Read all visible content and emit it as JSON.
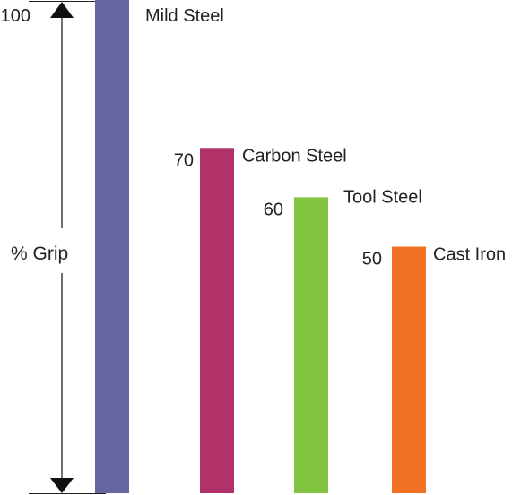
{
  "chart_data": {
    "type": "bar",
    "title": "",
    "xlabel": "",
    "ylabel": "% Grip",
    "ylim": [
      0,
      100
    ],
    "grid": false,
    "legend": "none",
    "categories": [
      "Mild Steel",
      "Carbon Steel",
      "Tool Steel",
      "Cast Iron"
    ],
    "values": [
      100,
      70,
      60,
      50
    ],
    "value_labels": [
      "100",
      "70",
      "60",
      "50"
    ],
    "colors": [
      "#6666a0",
      "#b03268",
      "#82c341",
      "#f07024"
    ]
  }
}
